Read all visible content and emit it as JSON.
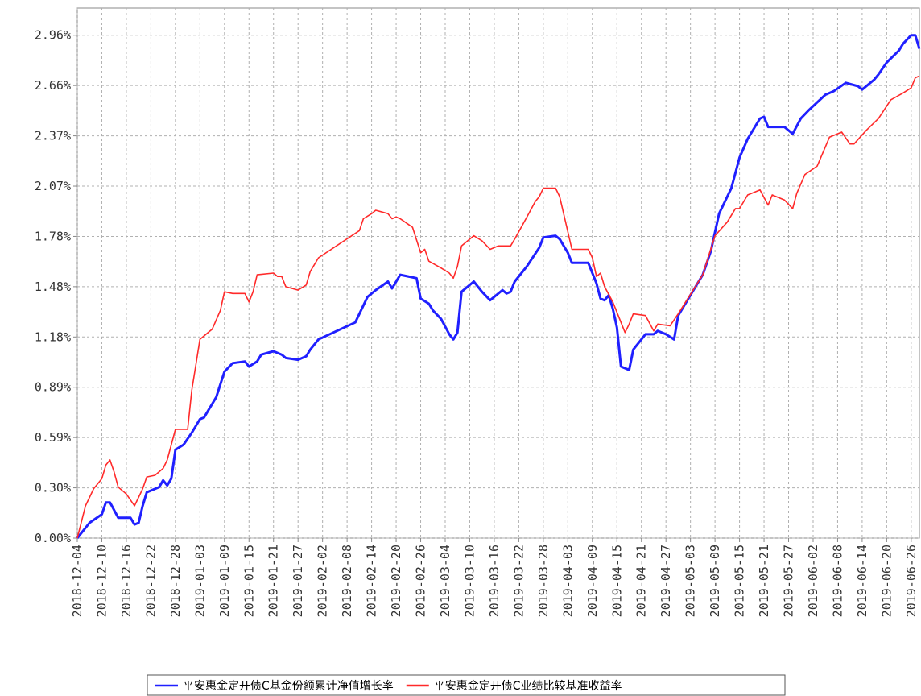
{
  "chart_data": {
    "type": "line",
    "grid": true,
    "legend": "bottom",
    "ylim": [
      0,
      3.12
    ],
    "yticks": [
      {
        "value": 0,
        "label": "0.00%"
      },
      {
        "value": 0.296,
        "label": "0.30%"
      },
      {
        "value": 0.592,
        "label": "0.59%"
      },
      {
        "value": 0.888,
        "label": "0.89%"
      },
      {
        "value": 1.184,
        "label": "1.18%"
      },
      {
        "value": 1.48,
        "label": "1.48%"
      },
      {
        "value": 1.776,
        "label": "1.78%"
      },
      {
        "value": 2.072,
        "label": "2.07%"
      },
      {
        "value": 2.368,
        "label": "2.37%"
      },
      {
        "value": 2.664,
        "label": "2.66%"
      },
      {
        "value": 2.96,
        "label": "2.96%"
      }
    ],
    "xlim": [
      "2018-12-04",
      "2019-06-28"
    ],
    "xticks": [
      "2018-12-04",
      "2018-12-10",
      "2018-12-16",
      "2018-12-22",
      "2018-12-28",
      "2019-01-03",
      "2019-01-09",
      "2019-01-15",
      "2019-01-21",
      "2019-01-27",
      "2019-02-02",
      "2019-02-08",
      "2019-02-14",
      "2019-02-20",
      "2019-02-26",
      "2019-03-04",
      "2019-03-10",
      "2019-03-16",
      "2019-03-22",
      "2019-03-28",
      "2019-04-03",
      "2019-04-09",
      "2019-04-15",
      "2019-04-21",
      "2019-04-27",
      "2019-05-03",
      "2019-05-09",
      "2019-05-15",
      "2019-05-21",
      "2019-05-27",
      "2019-06-02",
      "2019-06-08",
      "2019-06-14",
      "2019-06-20",
      "2019-06-26"
    ],
    "series": [
      {
        "name": "平安惠金定开债C基金份额累计净值增长率",
        "color": "#2020ff",
        "x": [
          "2018-12-04",
          "2018-12-06",
          "2018-12-07",
          "2018-12-10",
          "2018-12-11",
          "2018-12-12",
          "2018-12-14",
          "2018-12-17",
          "2018-12-18",
          "2018-12-19",
          "2018-12-20",
          "2018-12-21",
          "2018-12-24",
          "2018-12-25",
          "2018-12-26",
          "2018-12-27",
          "2018-12-28",
          "2018-12-30",
          "2019-01-01",
          "2019-01-03",
          "2019-01-04",
          "2019-01-07",
          "2019-01-09",
          "2019-01-11",
          "2019-01-14",
          "2019-01-15",
          "2019-01-17",
          "2019-01-18",
          "2019-01-21",
          "2019-01-23",
          "2019-01-24",
          "2019-01-27",
          "2019-01-29",
          "2019-01-30",
          "2019-02-01",
          "2019-02-10",
          "2019-02-13",
          "2019-02-15",
          "2019-02-18",
          "2019-02-19",
          "2019-02-20",
          "2019-02-21",
          "2019-02-25",
          "2019-02-26",
          "2019-02-28",
          "2019-03-01",
          "2019-03-03",
          "2019-03-05",
          "2019-03-06",
          "2019-03-07",
          "2019-03-08",
          "2019-03-11",
          "2019-03-13",
          "2019-03-15",
          "2019-03-18",
          "2019-03-19",
          "2019-03-20",
          "2019-03-21",
          "2019-03-24",
          "2019-03-27",
          "2019-03-28",
          "2019-03-31",
          "2019-04-01",
          "2019-04-03",
          "2019-04-04",
          "2019-04-08",
          "2019-04-10",
          "2019-04-11",
          "2019-04-12",
          "2019-04-13",
          "2019-04-14",
          "2019-04-15",
          "2019-04-16",
          "2019-04-18",
          "2019-04-19",
          "2019-04-22",
          "2019-04-24",
          "2019-04-25",
          "2019-04-27",
          "2019-04-29",
          "2019-04-30",
          "2019-05-05",
          "2019-05-06",
          "2019-05-08",
          "2019-05-10",
          "2019-05-13",
          "2019-05-15",
          "2019-05-17",
          "2019-05-20",
          "2019-05-21",
          "2019-05-22",
          "2019-05-26",
          "2019-05-28",
          "2019-05-30",
          "2019-06-01",
          "2019-06-05",
          "2019-06-07",
          "2019-06-10",
          "2019-06-13",
          "2019-06-14",
          "2019-06-17",
          "2019-06-18",
          "2019-06-20",
          "2019-06-23",
          "2019-06-24",
          "2019-06-26",
          "2019-06-27",
          "2019-06-28"
        ],
        "values": [
          0,
          0.06,
          0.09,
          0.14,
          0.21,
          0.21,
          0.12,
          0.12,
          0.08,
          0.09,
          0.19,
          0.27,
          0.3,
          0.34,
          0.31,
          0.35,
          0.52,
          0.55,
          0.62,
          0.7,
          0.71,
          0.83,
          0.98,
          1.03,
          1.04,
          1.01,
          1.04,
          1.08,
          1.1,
          1.08,
          1.06,
          1.05,
          1.07,
          1.11,
          1.17,
          1.27,
          1.42,
          1.46,
          1.51,
          1.47,
          1.51,
          1.55,
          1.53,
          1.41,
          1.38,
          1.34,
          1.29,
          1.2,
          1.17,
          1.21,
          1.45,
          1.51,
          1.45,
          1.4,
          1.46,
          1.44,
          1.45,
          1.51,
          1.6,
          1.71,
          1.77,
          1.78,
          1.76,
          1.68,
          1.62,
          1.62,
          1.5,
          1.41,
          1.4,
          1.43,
          1.35,
          1.24,
          1.01,
          0.99,
          1.11,
          1.2,
          1.2,
          1.22,
          1.2,
          1.17,
          1.31,
          1.51,
          1.55,
          1.69,
          1.91,
          2.06,
          2.24,
          2.35,
          2.47,
          2.48,
          2.42,
          2.42,
          2.38,
          2.47,
          2.52,
          2.61,
          2.63,
          2.68,
          2.66,
          2.64,
          2.7,
          2.73,
          2.8,
          2.87,
          2.91,
          2.96,
          2.96,
          2.88
        ]
      },
      {
        "name": "平安惠金定开债C业绩比较基准收益率",
        "color": "#ff2a2a",
        "x": [
          "2018-12-04",
          "2018-12-06",
          "2018-12-08",
          "2018-12-10",
          "2018-12-11",
          "2018-12-12",
          "2018-12-13",
          "2018-12-14",
          "2018-12-16",
          "2018-12-18",
          "2018-12-20",
          "2018-12-21",
          "2018-12-23",
          "2018-12-25",
          "2018-12-26",
          "2018-12-28",
          "2018-12-31",
          "2019-01-01",
          "2019-01-02",
          "2019-01-03",
          "2019-01-05",
          "2019-01-06",
          "2019-01-08",
          "2019-01-09",
          "2019-01-11",
          "2019-01-14",
          "2019-01-15",
          "2019-01-16",
          "2019-01-17",
          "2019-01-21",
          "2019-01-22",
          "2019-01-23",
          "2019-01-24",
          "2019-01-27",
          "2019-01-29",
          "2019-01-30",
          "2019-02-01",
          "2019-02-11",
          "2019-02-12",
          "2019-02-14",
          "2019-02-15",
          "2019-02-18",
          "2019-02-19",
          "2019-02-20",
          "2019-02-21",
          "2019-02-24",
          "2019-02-26",
          "2019-02-27",
          "2019-02-28",
          "2019-03-03",
          "2019-03-05",
          "2019-03-06",
          "2019-03-07",
          "2019-03-08",
          "2019-03-11",
          "2019-03-13",
          "2019-03-15",
          "2019-03-17",
          "2019-03-20",
          "2019-03-21",
          "2019-03-24",
          "2019-03-26",
          "2019-03-27",
          "2019-03-28",
          "2019-03-31",
          "2019-04-01",
          "2019-04-04",
          "2019-04-08",
          "2019-04-09",
          "2019-04-10",
          "2019-04-11",
          "2019-04-12",
          "2019-04-14",
          "2019-04-17",
          "2019-04-18",
          "2019-04-19",
          "2019-04-22",
          "2019-04-24",
          "2019-04-25",
          "2019-04-28",
          "2019-04-30",
          "2019-05-06",
          "2019-05-09",
          "2019-05-12",
          "2019-05-14",
          "2019-05-15",
          "2019-05-17",
          "2019-05-20",
          "2019-05-22",
          "2019-05-23",
          "2019-05-26",
          "2019-05-28",
          "2019-05-29",
          "2019-05-31",
          "2019-06-03",
          "2019-06-06",
          "2019-06-09",
          "2019-06-11",
          "2019-06-12",
          "2019-06-15",
          "2019-06-18",
          "2019-06-21",
          "2019-06-24",
          "2019-06-26",
          "2019-06-27",
          "2019-06-28"
        ],
        "values": [
          0,
          0.19,
          0.29,
          0.35,
          0.43,
          0.46,
          0.39,
          0.3,
          0.26,
          0.19,
          0.29,
          0.36,
          0.37,
          0.41,
          0.46,
          0.64,
          0.64,
          0.87,
          1.02,
          1.17,
          1.21,
          1.23,
          1.34,
          1.45,
          1.44,
          1.44,
          1.39,
          1.45,
          1.55,
          1.56,
          1.54,
          1.54,
          1.48,
          1.46,
          1.49,
          1.57,
          1.65,
          1.81,
          1.88,
          1.91,
          1.93,
          1.91,
          1.88,
          1.89,
          1.88,
          1.83,
          1.68,
          1.7,
          1.63,
          1.59,
          1.56,
          1.53,
          1.6,
          1.72,
          1.78,
          1.75,
          1.7,
          1.72,
          1.72,
          1.76,
          1.89,
          1.98,
          2.01,
          2.06,
          2.06,
          2.01,
          1.7,
          1.7,
          1.65,
          1.54,
          1.56,
          1.48,
          1.39,
          1.21,
          1.26,
          1.32,
          1.31,
          1.22,
          1.26,
          1.25,
          1.32,
          1.55,
          1.78,
          1.86,
          1.94,
          1.94,
          2.02,
          2.05,
          1.96,
          2.02,
          1.99,
          1.94,
          2.03,
          2.14,
          2.19,
          2.36,
          2.39,
          2.32,
          2.32,
          2.4,
          2.47,
          2.58,
          2.62,
          2.65,
          2.71,
          2.72
        ]
      }
    ]
  }
}
